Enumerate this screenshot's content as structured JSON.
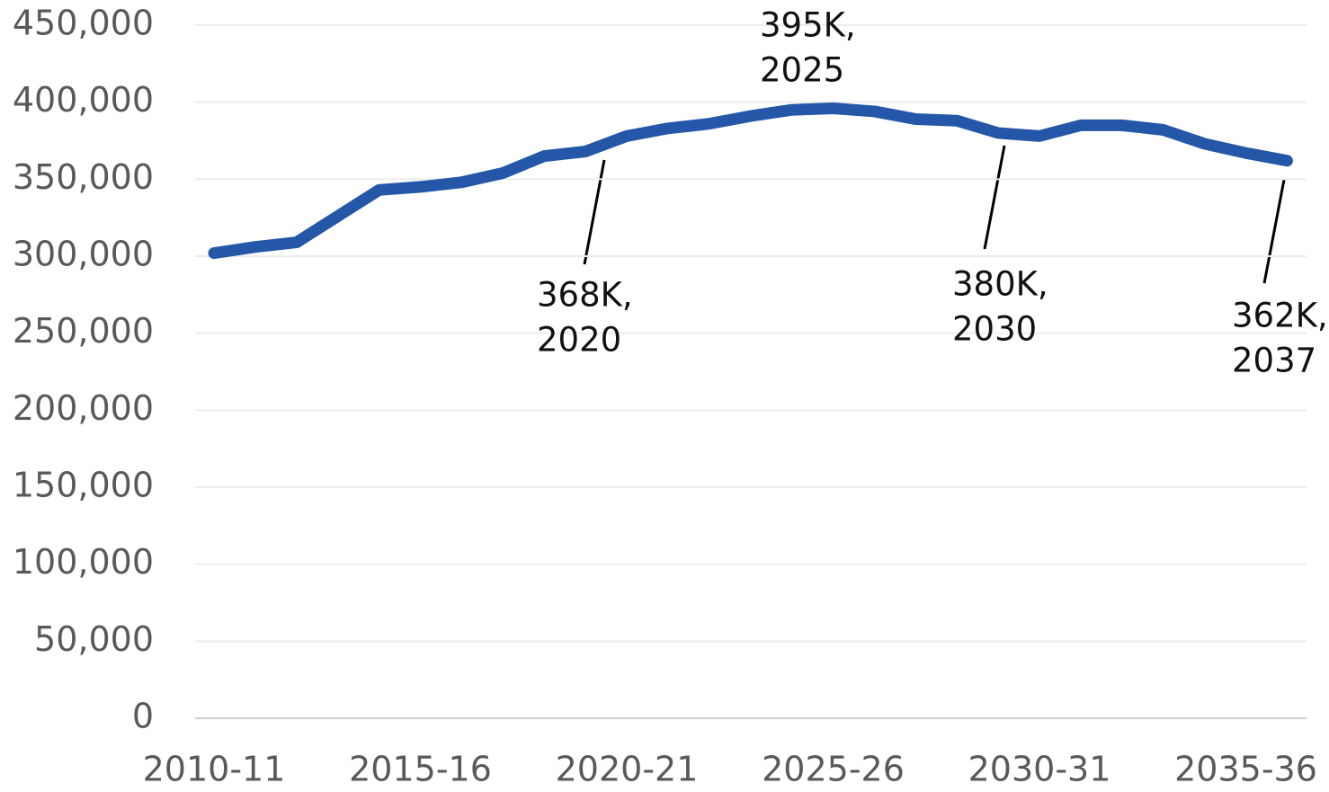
{
  "chart_data": {
    "type": "line",
    "categories": [
      "2010-11",
      null,
      null,
      null,
      null,
      "2015-16",
      null,
      null,
      null,
      null,
      "2020-21",
      null,
      null,
      null,
      null,
      "2025-26",
      null,
      null,
      null,
      null,
      "2030-31",
      null,
      null,
      null,
      null,
      "2035-36",
      null
    ],
    "series": [
      {
        "color": "#2457a8",
        "values": [
          302000,
          306000,
          309000,
          326000,
          343000,
          345000,
          348000,
          354000,
          365000,
          368000,
          378000,
          383000,
          386000,
          391000,
          395000,
          396000,
          394000,
          389000,
          388000,
          380000,
          378000,
          385000,
          385000,
          382000,
          373000,
          367000,
          362000
        ]
      }
    ],
    "ylim": [
      0,
      450000
    ],
    "yticks": [
      0,
      {
        "value": 50000,
        "label": "50,000"
      },
      {
        "value": 100000,
        "label": "100,000"
      },
      {
        "value": 150000,
        "label": "150,000"
      },
      {
        "value": 200000,
        "label": "200,000"
      },
      {
        "value": 250000,
        "label": "250,000"
      },
      {
        "value": 300000,
        "label": "300,000"
      },
      {
        "value": 350000,
        "label": "350,000"
      },
      {
        "value": 400000,
        "label": "400,000"
      },
      {
        "value": 450000,
        "label": "450,000"
      }
    ],
    "grid": true,
    "annotations": [
      {
        "lines": [
          "395K,",
          "2025"
        ]
      },
      {
        "lines": [
          "368K,",
          "2020"
        ]
      },
      {
        "lines": [
          "380K,",
          "2030"
        ]
      },
      {
        "lines": [
          "362K,",
          "2037"
        ]
      }
    ]
  }
}
